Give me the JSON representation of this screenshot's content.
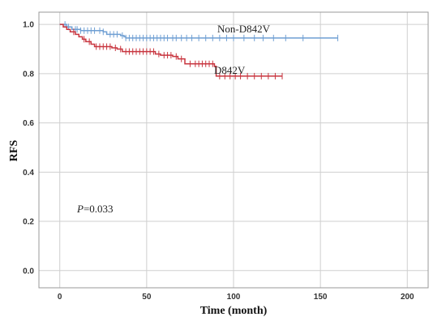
{
  "chart_data": {
    "type": "line",
    "xlabel": "Time (month)",
    "ylabel": "RFS",
    "xlim": [
      -12,
      212
    ],
    "ylim": [
      -0.07,
      1.05
    ],
    "x_ticks": [
      0,
      50,
      100,
      150,
      200
    ],
    "y_ticks": [
      0.0,
      0.2,
      0.4,
      0.6,
      0.8,
      1.0
    ],
    "x_tick_labels": [
      "0",
      "50",
      "100",
      "150",
      "200"
    ],
    "y_tick_labels": [
      "0.0",
      "0.2",
      "0.4",
      "0.6",
      "0.8",
      "1.0"
    ],
    "grid": true,
    "annotation": {
      "italic": "P",
      "text": "=0.033"
    },
    "series": [
      {
        "name": "Non-D842V",
        "color": "#6f9fd3",
        "steps": [
          [
            0,
            1.0
          ],
          [
            4,
            0.99
          ],
          [
            7,
            0.98
          ],
          [
            12,
            0.975
          ],
          [
            25,
            0.97
          ],
          [
            27,
            0.96
          ],
          [
            35,
            0.955
          ],
          [
            37,
            0.95
          ],
          [
            38,
            0.945
          ],
          [
            160,
            0.945
          ]
        ],
        "censor": [
          3,
          5,
          9,
          10,
          12,
          14,
          16,
          18,
          20,
          23,
          25,
          29,
          31,
          33,
          36,
          38,
          40,
          42,
          44,
          46,
          48,
          50,
          52,
          54,
          56,
          58,
          60,
          62,
          65,
          67,
          70,
          73,
          76,
          80,
          84,
          88,
          92,
          96,
          100,
          106,
          112,
          117,
          123,
          130,
          140,
          160
        ]
      },
      {
        "name": "D842V",
        "color": "#c8353f",
        "steps": [
          [
            0,
            1.0
          ],
          [
            2,
            0.99
          ],
          [
            4,
            0.98
          ],
          [
            6,
            0.97
          ],
          [
            9,
            0.96
          ],
          [
            11,
            0.95
          ],
          [
            13,
            0.94
          ],
          [
            15,
            0.93
          ],
          [
            18,
            0.92
          ],
          [
            20,
            0.91
          ],
          [
            30,
            0.905
          ],
          [
            33,
            0.9
          ],
          [
            36,
            0.89
          ],
          [
            55,
            0.88
          ],
          [
            58,
            0.875
          ],
          [
            65,
            0.87
          ],
          [
            68,
            0.86
          ],
          [
            72,
            0.84
          ],
          [
            89,
            0.83
          ],
          [
            90,
            0.79
          ],
          [
            128,
            0.79
          ]
        ],
        "censor": [
          8,
          14,
          17,
          21,
          23,
          25,
          27,
          29,
          32,
          35,
          38,
          40,
          42,
          44,
          46,
          48,
          50,
          52,
          54,
          57,
          60,
          62,
          64,
          67,
          70,
          75,
          78,
          80,
          82,
          84,
          86,
          88,
          92,
          95,
          98,
          101,
          104,
          108,
          112,
          116,
          120,
          124,
          128
        ]
      }
    ]
  }
}
